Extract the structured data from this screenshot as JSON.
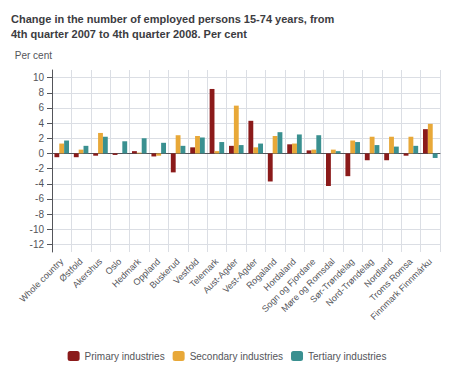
{
  "chart_data": {
    "type": "bar",
    "title": "Change in the number of employed persons 15-74 years, from\n4th quarter 2007 to 4th quarter 2008. Per cent",
    "ylabel": "Per cent",
    "categories": [
      "Whole country",
      "Østfold",
      "Akershus",
      "Oslo",
      "Hedmark",
      "Oppland",
      "Buskerud",
      "Vestfold",
      "Telemark",
      "Aust-Agder",
      "Vest-Agder",
      "Rogaland",
      "Hordaland",
      "Sogn og Fjordane",
      "Møre og Romsdal",
      "Sør-Trøndelag",
      "Nord-Trøndelag",
      "Nordland",
      "Troms Romsa",
      "Finnmark Finnmárku"
    ],
    "series": [
      {
        "name": "Primary industries",
        "color": "#8B1A1A",
        "values": [
          -0.5,
          -0.5,
          -0.3,
          -0.2,
          0.3,
          -0.4,
          -2.5,
          0.8,
          8.5,
          1.0,
          4.3,
          -3.7,
          1.2,
          0.4,
          -4.3,
          -3.0,
          -0.9,
          -0.9,
          -0.3,
          3.2
        ]
      },
      {
        "name": "Secondary industries",
        "color": "#E8A838",
        "values": [
          1.3,
          0.5,
          2.7,
          0.0,
          0.1,
          -0.3,
          2.4,
          2.3,
          0.3,
          6.3,
          0.8,
          2.3,
          1.3,
          0.5,
          0.5,
          1.7,
          2.2,
          2.2,
          2.2,
          3.9
        ]
      },
      {
        "name": "Tertiary industries",
        "color": "#3A9090",
        "values": [
          1.7,
          1.0,
          2.2,
          1.6,
          2.0,
          1.4,
          1.0,
          2.1,
          1.5,
          1.1,
          1.3,
          2.8,
          2.5,
          2.4,
          0.3,
          1.5,
          1.1,
          0.9,
          1.0,
          -0.6
        ]
      }
    ],
    "ylim": [
      -13,
      11
    ],
    "yticks": [
      -12,
      -10,
      -8,
      -6,
      -4,
      -2,
      0,
      2,
      4,
      6,
      8,
      10
    ],
    "grid": true,
    "legend": "bottom"
  }
}
